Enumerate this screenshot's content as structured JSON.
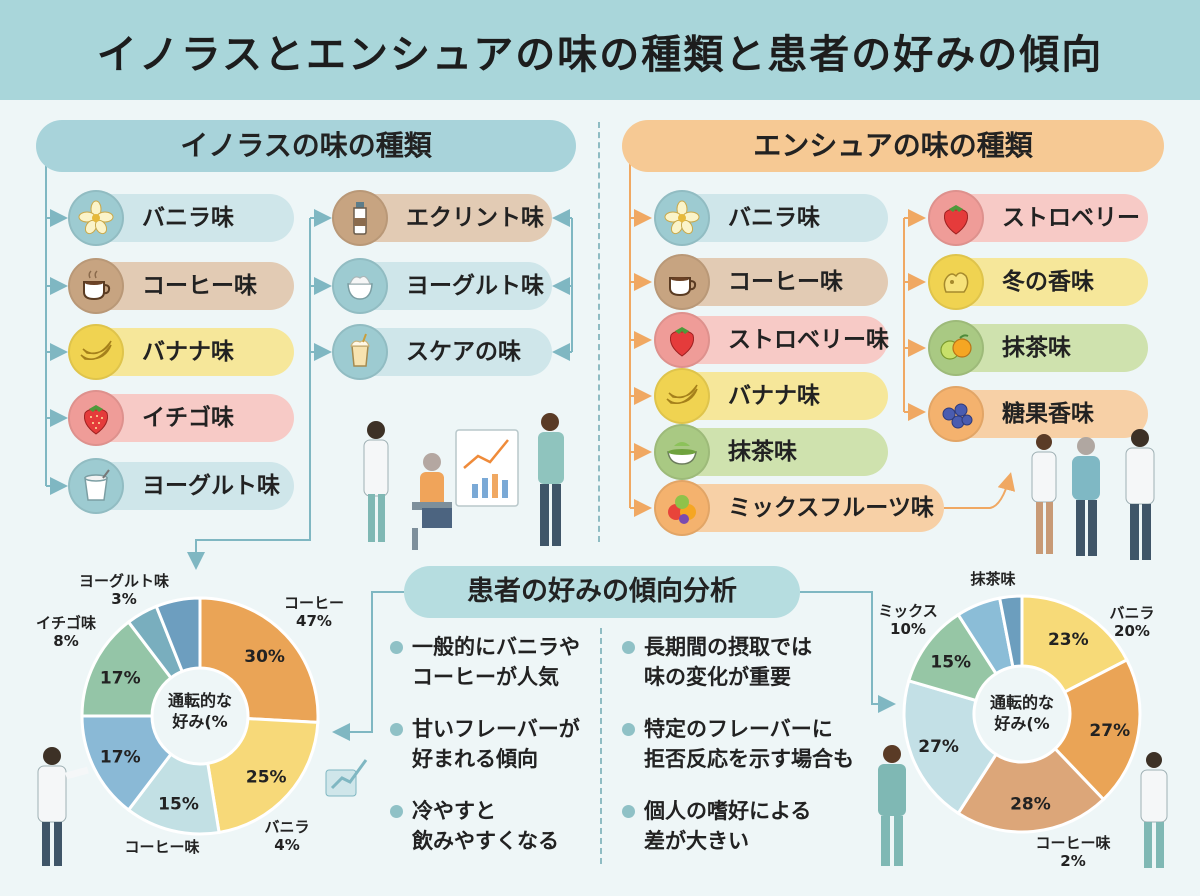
{
  "title": "イノラスとエンシュアの味の種類と患者の好みの傾向",
  "inorasu": {
    "header": "イノラスの味の種類",
    "left_items": [
      {
        "label": "バニラ味",
        "icon": "vanilla-flower-icon"
      },
      {
        "label": "コーヒー味",
        "icon": "coffee-cup-icon"
      },
      {
        "label": "バナナ味",
        "icon": "banana-icon"
      },
      {
        "label": "イチゴ味",
        "icon": "strawberry-icon"
      },
      {
        "label": "ヨーグルト味",
        "icon": "yogurt-cup-icon"
      }
    ],
    "right_items": [
      {
        "label": "エクリント味",
        "icon": "bottle-icon"
      },
      {
        "label": "ヨーグルト味",
        "icon": "yogurt-bowl-icon"
      },
      {
        "label": "スケアの味",
        "icon": "smoothie-icon"
      }
    ]
  },
  "ensure": {
    "header": "エンシュアの味の種類",
    "left_items": [
      {
        "label": "バニラ味",
        "icon": "vanilla-flower-icon"
      },
      {
        "label": "コーヒー味",
        "icon": "coffee-cup-icon"
      },
      {
        "label": "ストロベリー味",
        "icon": "strawberry-icon"
      },
      {
        "label": "バナナ味",
        "icon": "banana-icon"
      },
      {
        "label": "抹茶味",
        "icon": "matcha-bowl-icon"
      },
      {
        "label": "ミックスフルーツ味",
        "icon": "mixed-fruit-icon"
      }
    ],
    "right_items": [
      {
        "label": "ストロベリー",
        "icon": "strawberry-icon"
      },
      {
        "label": "冬の香味",
        "icon": "winter-ornament-icon"
      },
      {
        "label": "抹茶味",
        "icon": "citrus-icon"
      },
      {
        "label": "糖果香味",
        "icon": "blueberry-icon"
      }
    ]
  },
  "analysis": {
    "header": "患者の好みの傾向分析",
    "left_bullets": [
      [
        "一般的にバニラや",
        "コーヒーが人気"
      ],
      [
        "甘いフレーバーが",
        "好まれる傾向"
      ],
      [
        "冷やすと",
        "飲みやすくなる"
      ]
    ],
    "right_bullets": [
      [
        "長期間の摂取では",
        "味の変化が重要"
      ],
      [
        "特定のフレーバーに",
        "拒否反応を示す場合も"
      ],
      [
        "個人の嗜好による",
        "差が大きい"
      ]
    ]
  },
  "chart_data": [
    {
      "type": "pie",
      "title": "",
      "center_label": [
        "通転的な",
        "好み(%"
      ],
      "slices": [
        {
          "label": "30%",
          "value": 30,
          "color": "#eaa456"
        },
        {
          "label": "25%",
          "value": 25,
          "color": "#f7d979"
        },
        {
          "label": "15%",
          "value": 15,
          "color": "#c2e0e4"
        },
        {
          "label": "17%",
          "value": 17,
          "color": "#8ab9d6"
        },
        {
          "label": "17%",
          "value": 17,
          "color": "#94c5a7"
        },
        {
          "label": "",
          "value": 5,
          "color": "#79aebe"
        },
        {
          "label": "",
          "value": 7,
          "color": "#6d9ebf"
        }
      ],
      "outer_labels": [
        {
          "name": "コーヒー",
          "pct": "47%"
        },
        {
          "name": "バニラ",
          "pct": "4%"
        },
        {
          "name": "コーヒー味",
          "pct": ""
        },
        {
          "name": "イチゴ味",
          "pct": "8%"
        },
        {
          "name": "ヨーグルト味",
          "pct": "3%"
        }
      ]
    },
    {
      "type": "pie",
      "title": "",
      "center_label": [
        "通転的な",
        "好み(%"
      ],
      "slices": [
        {
          "label": "23%",
          "value": 23,
          "color": "#f7da78"
        },
        {
          "label": "27%",
          "value": 27,
          "color": "#eaa456"
        },
        {
          "label": "28%",
          "value": 28,
          "color": "#dca679"
        },
        {
          "label": "27%",
          "value": 27,
          "color": "#c3e0e6"
        },
        {
          "label": "15%",
          "value": 15,
          "color": "#96c6a5"
        },
        {
          "label": "",
          "value": 8,
          "color": "#8bbdd7"
        },
        {
          "label": "",
          "value": 4,
          "color": "#6c9ebe"
        }
      ],
      "outer_labels": [
        {
          "name": "バニラ",
          "pct": "20%"
        },
        {
          "name": "コーヒー味",
          "pct": "2%"
        },
        {
          "name": "ミックス",
          "pct": "10%"
        },
        {
          "name": "抹茶味",
          "pct": ""
        }
      ]
    }
  ],
  "colors": {
    "header_bg": "#a9d6da",
    "inorasu_accent": "#a8d3da",
    "ensure_accent": "#f6c994",
    "connector_blue": "#7fb7c2",
    "connector_orange": "#f0a862"
  }
}
